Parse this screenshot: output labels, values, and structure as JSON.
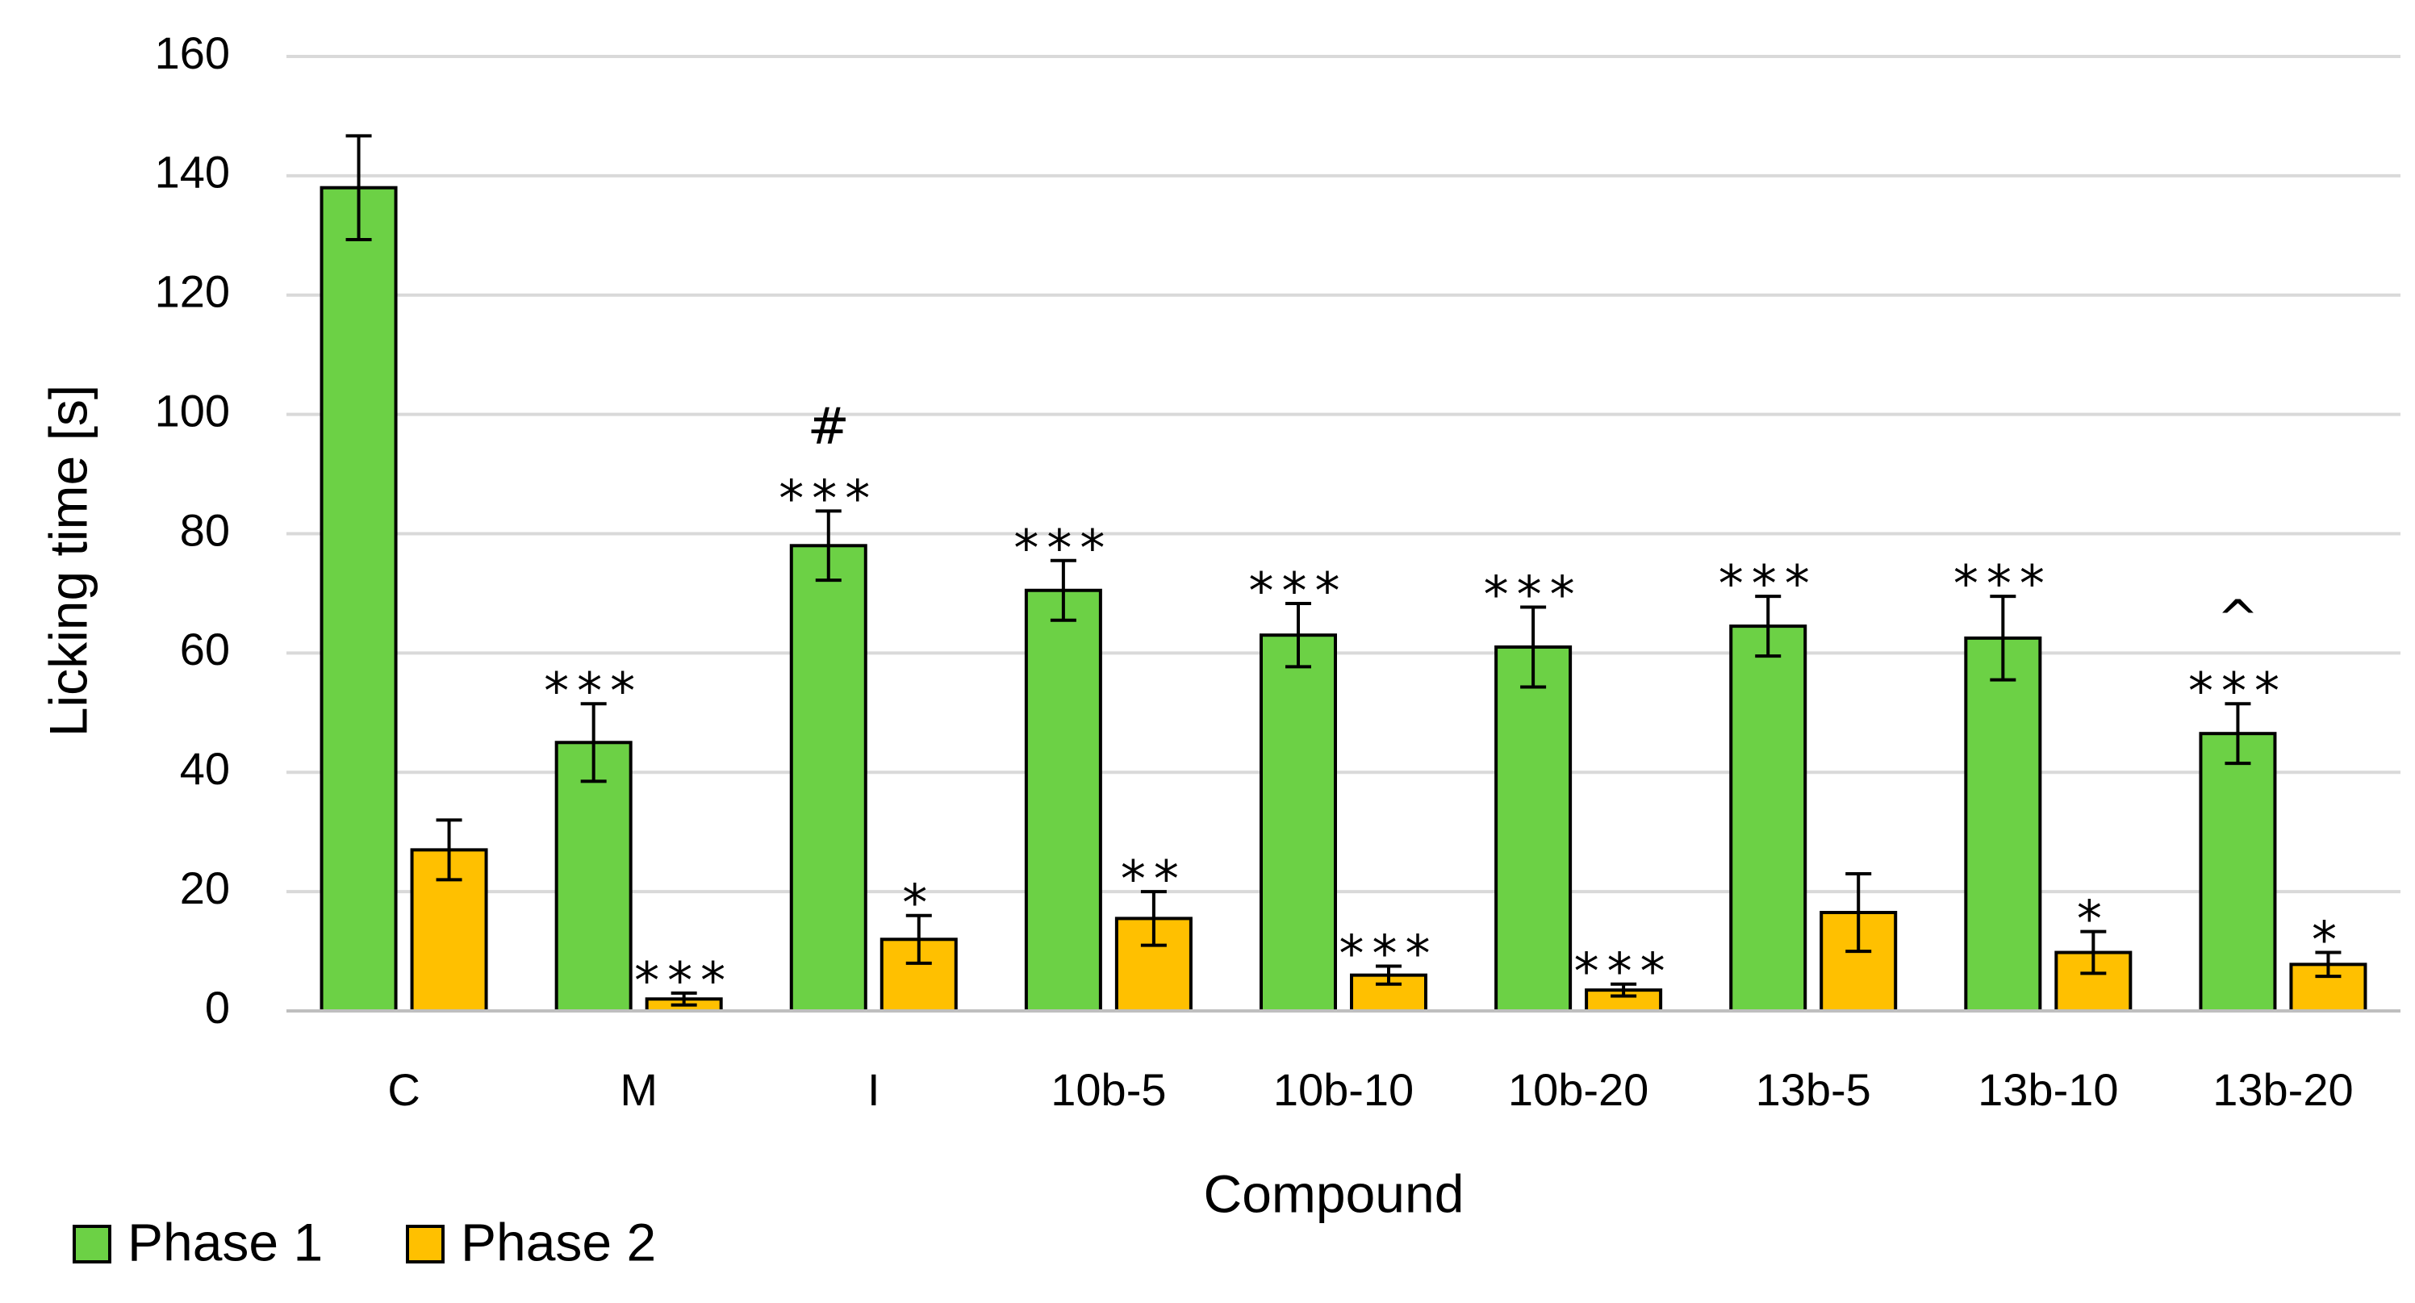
{
  "chart_data": {
    "type": "bar",
    "title": "",
    "xlabel": "Compound",
    "ylabel": "Licking time [s]",
    "ylim": [
      0,
      160
    ],
    "yticks": [
      0,
      20,
      40,
      60,
      80,
      100,
      120,
      140,
      160
    ],
    "grid": true,
    "legend_position": "bottom-left",
    "categories": [
      "C",
      "M",
      "I",
      "10b-5",
      "10b-10",
      "10b-20",
      "13b-5",
      "13b-10",
      "13b-20"
    ],
    "series": [
      {
        "name": "Phase 1",
        "color": "#6cd145",
        "values": [
          138,
          45,
          78,
          70.5,
          63,
          61,
          64.5,
          62.5,
          46.5
        ],
        "errors": [
          8.7,
          6.5,
          5.8,
          5,
          5.3,
          6.7,
          5,
          7,
          5
        ],
        "annotations": [
          "",
          "***",
          "#\n***",
          "***",
          "***",
          "***",
          "***",
          "***",
          "^\n***"
        ]
      },
      {
        "name": "Phase 2",
        "color": "#ffc000",
        "values": [
          27,
          2,
          12,
          15.5,
          6,
          3.5,
          16.5,
          9.8,
          7.8
        ],
        "errors": [
          5,
          1,
          4,
          4.5,
          1.5,
          1,
          6.5,
          3.5,
          2
        ],
        "annotations": [
          "",
          "***",
          "*",
          "**",
          "***",
          "***",
          "",
          "*",
          "*"
        ]
      }
    ]
  }
}
